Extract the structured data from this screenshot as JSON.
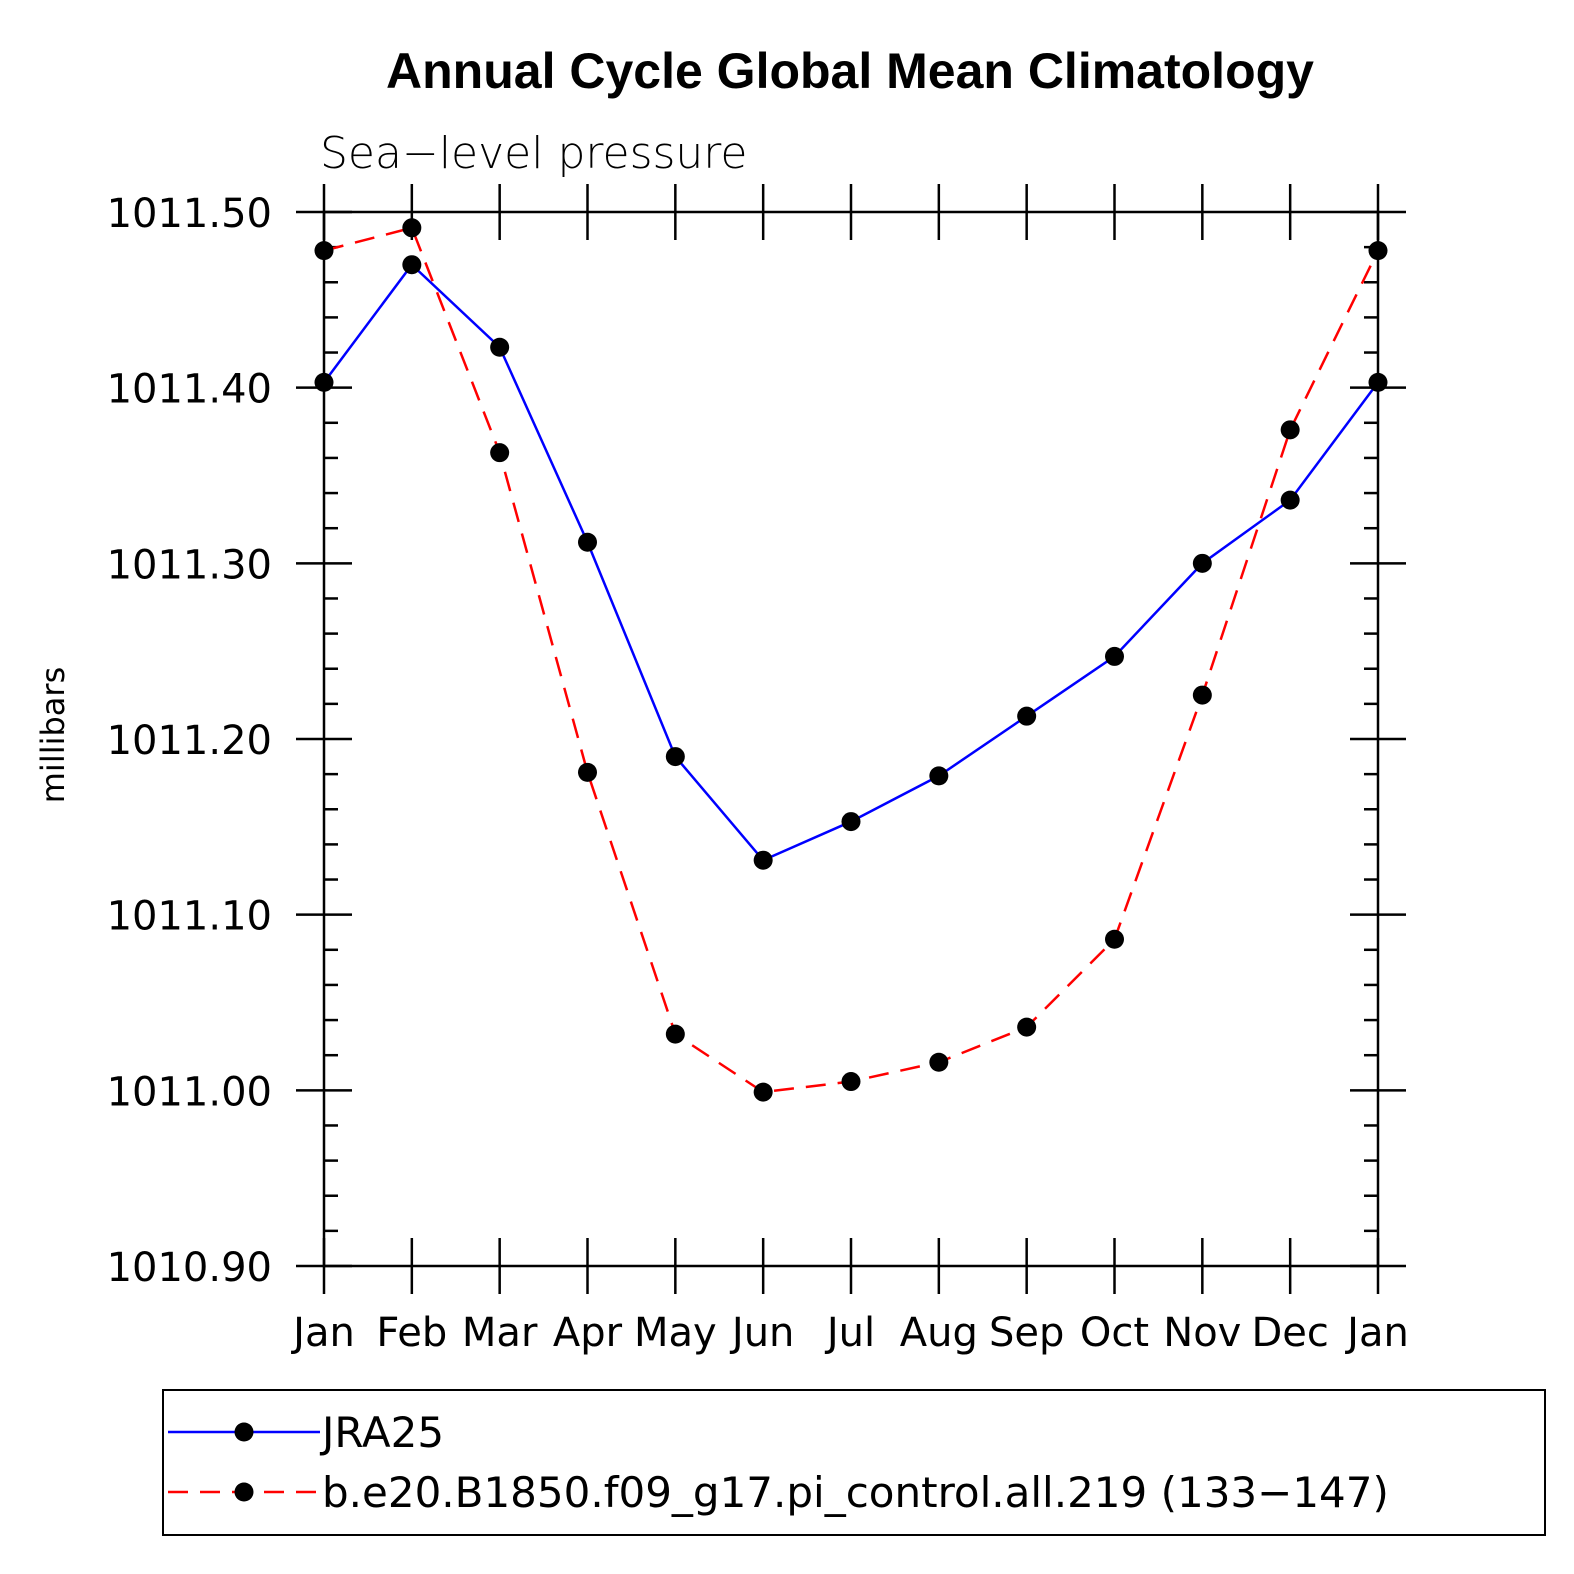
{
  "chart_data": {
    "type": "line",
    "title": "Annual Cycle Global Mean Climatology",
    "subtitle": "Sea−level pressure",
    "xlabel": "",
    "ylabel": "millibars",
    "categories": [
      "Jan",
      "Feb",
      "Mar",
      "Apr",
      "May",
      "Jun",
      "Jul",
      "Aug",
      "Sep",
      "Oct",
      "Nov",
      "Dec",
      "Jan"
    ],
    "ylim": [
      1010.9,
      1011.5
    ],
    "yticks": [
      "1010.90",
      "1011.00",
      "1011.10",
      "1011.20",
      "1011.30",
      "1011.40",
      "1011.50"
    ],
    "ytick_values": [
      1010.9,
      1011.0,
      1011.1,
      1011.2,
      1011.3,
      1011.4,
      1011.5
    ],
    "series": [
      {
        "name": "JRA25",
        "color": "#0000ff",
        "dash": "solid",
        "values": [
          1011.403,
          1011.47,
          1011.423,
          1011.312,
          1011.19,
          1011.131,
          1011.153,
          1011.179,
          1011.213,
          1011.247,
          1011.3,
          1011.336,
          1011.403
        ]
      },
      {
        "name": "b.e20.B1850.f09_g17.pi_control.all.219 (133−147)",
        "color": "#ff0000",
        "dash": "dashed",
        "values": [
          1011.478,
          1011.491,
          1011.363,
          1011.181,
          1011.032,
          1010.999,
          1011.005,
          1011.016,
          1011.036,
          1011.086,
          1011.225,
          1011.376,
          1011.478
        ]
      }
    ],
    "grid": false,
    "legend_position": "bottom"
  }
}
